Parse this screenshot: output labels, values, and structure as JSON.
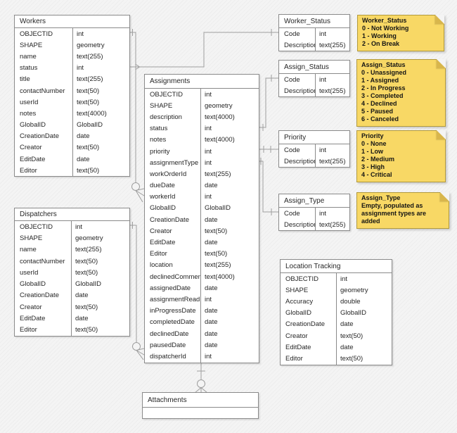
{
  "entities": [
    {
      "id": "workers",
      "title": "Workers",
      "fields": [
        {
          "name": "OBJECTID",
          "type": "int"
        },
        {
          "name": "SHAPE",
          "type": "geometry"
        },
        {
          "name": "name",
          "type": "text(255)"
        },
        {
          "name": "status",
          "type": "int"
        },
        {
          "name": "title",
          "type": "text(255)"
        },
        {
          "name": "contactNumber",
          "type": "text(50)"
        },
        {
          "name": "userId",
          "type": "text(50)"
        },
        {
          "name": "notes",
          "type": "text(4000)"
        },
        {
          "name": "GlobalID",
          "type": "GlobalID"
        },
        {
          "name": "CreationDate",
          "type": "date"
        },
        {
          "name": "Creator",
          "type": "text(50)"
        },
        {
          "name": "EditDate",
          "type": "date"
        },
        {
          "name": "Editor",
          "type": "text(50)"
        }
      ]
    },
    {
      "id": "dispatchers",
      "title": "Dispatchers",
      "fields": [
        {
          "name": "OBJECTID",
          "type": "int"
        },
        {
          "name": "SHAPE",
          "type": "geometry"
        },
        {
          "name": "name",
          "type": "text(255)"
        },
        {
          "name": "contactNumber",
          "type": "text(50)"
        },
        {
          "name": "userId",
          "type": "text(50)"
        },
        {
          "name": "GlobalID",
          "type": "GlobalID"
        },
        {
          "name": "CreationDate",
          "type": "date"
        },
        {
          "name": "Creator",
          "type": "text(50)"
        },
        {
          "name": "EditDate",
          "type": "date"
        },
        {
          "name": "Editor",
          "type": "text(50)"
        }
      ]
    },
    {
      "id": "assignments",
      "title": "Assignments",
      "fields": [
        {
          "name": "OBJECTID",
          "type": "int"
        },
        {
          "name": "SHAPE",
          "type": "geometry"
        },
        {
          "name": "description",
          "type": "text(4000)"
        },
        {
          "name": "status",
          "type": "int"
        },
        {
          "name": "notes",
          "type": "text(4000)"
        },
        {
          "name": "priority",
          "type": "int"
        },
        {
          "name": "assignmentType",
          "type": "int"
        },
        {
          "name": "workOrderId",
          "type": "text(255)"
        },
        {
          "name": "dueDate",
          "type": "date"
        },
        {
          "name": "workerId",
          "type": "int"
        },
        {
          "name": "GlobalID",
          "type": "GlobalID"
        },
        {
          "name": "CreationDate",
          "type": "date"
        },
        {
          "name": "Creator",
          "type": "text(50)"
        },
        {
          "name": "EditDate",
          "type": "date"
        },
        {
          "name": "Editor",
          "type": "text(50)"
        },
        {
          "name": "location",
          "type": "text(255)"
        },
        {
          "name": "declinedComment",
          "type": "text(4000)"
        },
        {
          "name": "assignedDate",
          "type": "date"
        },
        {
          "name": "assignmentRead",
          "type": "int"
        },
        {
          "name": "inProgressDate",
          "type": "date"
        },
        {
          "name": "completedDate",
          "type": "date"
        },
        {
          "name": "declinedDate",
          "type": "date"
        },
        {
          "name": "pausedDate",
          "type": "date"
        },
        {
          "name": "dispatcherId",
          "type": "int"
        }
      ]
    },
    {
      "id": "worker_status",
      "title": "Worker_Status",
      "fields": [
        {
          "name": "Code",
          "type": "int"
        },
        {
          "name": "Description",
          "type": "text(255)"
        }
      ]
    },
    {
      "id": "assign_status",
      "title": "Assign_Status",
      "fields": [
        {
          "name": "Code",
          "type": "int"
        },
        {
          "name": "Description",
          "type": "text(255)"
        }
      ]
    },
    {
      "id": "priority",
      "title": "Priority",
      "fields": [
        {
          "name": "Code",
          "type": "int"
        },
        {
          "name": "Description",
          "type": "text(255)"
        }
      ]
    },
    {
      "id": "assign_type",
      "title": "Assign_Type",
      "fields": [
        {
          "name": "Code",
          "type": "int"
        },
        {
          "name": "Description",
          "type": "text(255)"
        }
      ]
    },
    {
      "id": "location_tracking",
      "title": "Location Tracking",
      "fields": [
        {
          "name": "OBJECTID",
          "type": "int"
        },
        {
          "name": "SHAPE",
          "type": "geometry"
        },
        {
          "name": "Accuracy",
          "type": "double"
        },
        {
          "name": "GlobalID",
          "type": "GlobalID"
        },
        {
          "name": "CreationDate",
          "type": "date"
        },
        {
          "name": "Creator",
          "type": "text(50)"
        },
        {
          "name": "EditDate",
          "type": "date"
        },
        {
          "name": "Editor",
          "type": "text(50)"
        }
      ]
    },
    {
      "id": "attachments",
      "title": "Attachments",
      "fields": []
    }
  ],
  "notes": [
    {
      "id": "worker_status_note",
      "title": "Worker_Status",
      "lines": [
        "0 - Not Working",
        "1 - Working",
        "2 - On Break"
      ]
    },
    {
      "id": "assign_status_note",
      "title": "Assign_Status",
      "lines": [
        "0 - Unassigned",
        "1 - Assigned",
        "2 - In Progress",
        "3 - Completed",
        "4 - Declined",
        "5 - Paused",
        "6 - Canceled"
      ]
    },
    {
      "id": "priority_note",
      "title": "Priority",
      "lines": [
        "0 - None",
        "1 - Low",
        "2 - Medium",
        "3 - High",
        "4 - Critical"
      ]
    },
    {
      "id": "assign_type_note",
      "title": "Assign_Type",
      "lines": [
        "Empty, populated as assignment types are added"
      ]
    }
  ],
  "relationships": [
    {
      "from": "Workers.status",
      "to": "Worker_Status.Code",
      "from_marker": "arrow",
      "to_marker": "one"
    },
    {
      "from": "Workers.OBJECTID",
      "to": "Assignments.workerId",
      "from_marker": "one",
      "to_marker": "zero-or-many"
    },
    {
      "from": "Dispatchers.OBJECTID",
      "to": "Assignments.dispatcherId",
      "from_marker": "one",
      "to_marker": "zero-or-many"
    },
    {
      "from": "Assignments.status",
      "to": "Assign_Status.Code",
      "from_marker": "one",
      "to_marker": "one"
    },
    {
      "from": "Assignments.priority",
      "to": "Priority.Code",
      "from_marker": "one",
      "to_marker": "one"
    },
    {
      "from": "Assignments.assignmentType",
      "to": "Assign_Type.Code",
      "from_marker": "one",
      "to_marker": "one"
    },
    {
      "from": "Assignments",
      "to": "Attachments",
      "from_marker": "one",
      "to_marker": "zero-or-many"
    }
  ],
  "colors": {
    "background": "#F4F4F4",
    "table_fill": "#FFFFFF",
    "table_border": "#8A8A8A",
    "connector_line": "#9E9E9E",
    "note_fill": "#F8D865",
    "note_fold": "#D8B64C",
    "note_border": "#B29A3D",
    "text": "#262626"
  }
}
